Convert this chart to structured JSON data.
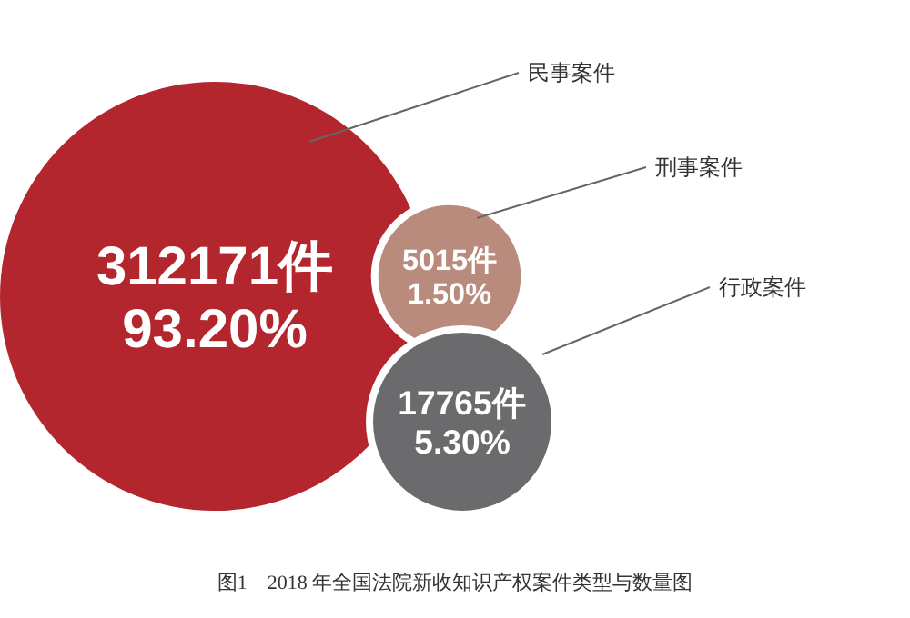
{
  "chart_data": {
    "type": "other",
    "categories": [
      "民事案件",
      "刑事案件",
      "行政案件"
    ],
    "series": [
      {
        "colors": [
          "#b3262d",
          "#b98b7c",
          "#6b6b6e"
        ],
        "values": [
          312171,
          5015,
          17765
        ],
        "value_labels": [
          "312171件",
          "5015件",
          "17765件"
        ]
      },
      {
        "values": [
          93.2,
          1.5,
          5.3
        ],
        "value_labels": [
          "93.20%",
          "1.50%",
          "5.30%"
        ]
      }
    ],
    "annotations": [
      "图1　2018 年全国法院新收知识产权案件类型与数量图"
    ]
  }
}
